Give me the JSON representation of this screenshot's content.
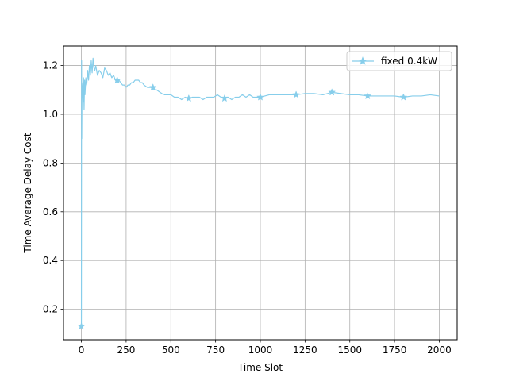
{
  "chart_data": {
    "type": "line",
    "title": "",
    "xlabel": "Time Slot",
    "ylabel": "Time Average Delay Cost",
    "xlim": [
      -100,
      2100
    ],
    "ylim": [
      0.075,
      1.28
    ],
    "xticks": [
      0,
      250,
      500,
      750,
      1000,
      1250,
      1500,
      1750,
      2000
    ],
    "yticks": [
      0.2,
      0.4,
      0.6,
      0.8,
      1.0,
      1.2
    ],
    "grid": true,
    "legend_position": "top-right",
    "series": [
      {
        "name": "fixed 0.4kW",
        "color": "#87ceeb",
        "marker": "star",
        "x": [
          0,
          1,
          2,
          3,
          5,
          8,
          10,
          12,
          15,
          18,
          20,
          25,
          30,
          35,
          40,
          45,
          50,
          55,
          60,
          65,
          70,
          75,
          80,
          90,
          100,
          110,
          120,
          130,
          140,
          150,
          160,
          170,
          180,
          190,
          200,
          210,
          220,
          230,
          240,
          250,
          260,
          270,
          280,
          290,
          300,
          310,
          320,
          330,
          340,
          350,
          370,
          390,
          400,
          420,
          440,
          460,
          480,
          500,
          520,
          540,
          560,
          580,
          600,
          620,
          640,
          660,
          680,
          700,
          720,
          740,
          760,
          780,
          800,
          820,
          840,
          860,
          880,
          900,
          920,
          940,
          960,
          980,
          1000,
          1050,
          1100,
          1150,
          1200,
          1250,
          1300,
          1350,
          1400,
          1450,
          1500,
          1550,
          1600,
          1650,
          1700,
          1750,
          1800,
          1850,
          1900,
          1950,
          2000
        ],
        "y": [
          0.13,
          1.22,
          0.9,
          1.05,
          1.1,
          1.13,
          1.05,
          1.15,
          1.02,
          1.14,
          1.08,
          1.15,
          1.12,
          1.18,
          1.14,
          1.2,
          1.16,
          1.22,
          1.17,
          1.23,
          1.19,
          1.18,
          1.2,
          1.16,
          1.18,
          1.17,
          1.15,
          1.19,
          1.18,
          1.16,
          1.17,
          1.15,
          1.16,
          1.14,
          1.13,
          1.14,
          1.13,
          1.12,
          1.12,
          1.11,
          1.12,
          1.12,
          1.13,
          1.13,
          1.14,
          1.14,
          1.14,
          1.13,
          1.13,
          1.12,
          1.11,
          1.11,
          1.1,
          1.1,
          1.09,
          1.08,
          1.08,
          1.08,
          1.07,
          1.07,
          1.06,
          1.07,
          1.06,
          1.07,
          1.07,
          1.07,
          1.06,
          1.07,
          1.07,
          1.07,
          1.08,
          1.07,
          1.07,
          1.07,
          1.06,
          1.07,
          1.07,
          1.08,
          1.07,
          1.08,
          1.07,
          1.07,
          1.07,
          1.08,
          1.08,
          1.08,
          1.08,
          1.085,
          1.085,
          1.08,
          1.09,
          1.085,
          1.08,
          1.08,
          1.075,
          1.075,
          1.075,
          1.075,
          1.07,
          1.075,
          1.075,
          1.08,
          1.075
        ],
        "marker_x": [
          0,
          200,
          400,
          600,
          800,
          1000,
          1200,
          1400,
          1600,
          1800
        ],
        "marker_y": [
          0.13,
          1.14,
          1.11,
          1.065,
          1.065,
          1.07,
          1.08,
          1.09,
          1.075,
          1.07
        ]
      }
    ]
  }
}
